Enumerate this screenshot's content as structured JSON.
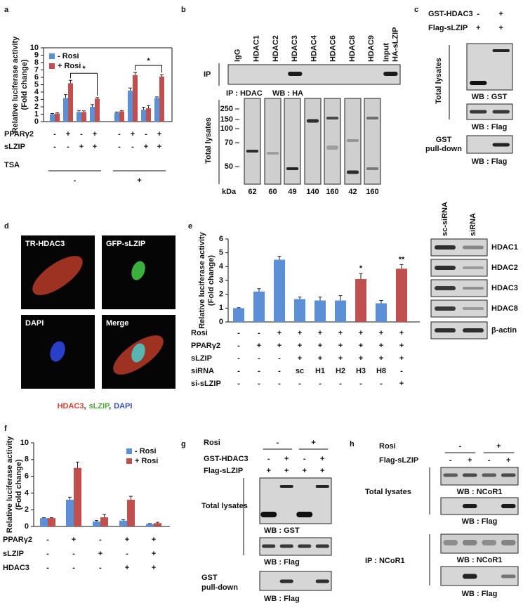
{
  "chart_data": [
    {
      "type": "bar",
      "y_label": [
        "Relative luciferase activity",
        "(Fold change)"
      ],
      "categories": [
        null,
        null,
        null,
        null,
        null,
        null,
        null,
        null
      ],
      "series": [
        {
          "name": "- Rosi",
          "color": "#5b8fd6",
          "values": [
            1.0,
            3.2,
            1.3,
            2.0,
            1.2,
            4.2,
            1.6,
            3.2
          ],
          "errors": [
            0.1,
            0.45,
            0.2,
            0.3,
            0.1,
            0.35,
            0.35,
            0.15
          ]
        },
        {
          "name": "+ Rosi",
          "color": "#c0504d",
          "values": [
            1.1,
            5.2,
            1.3,
            3.1,
            1.4,
            6.3,
            1.8,
            6.1
          ],
          "errors": [
            0.1,
            0.4,
            0.15,
            0.15,
            0.1,
            0.35,
            0.35,
            0.25
          ]
        }
      ],
      "ylim": [
        0,
        10
      ],
      "yticks": [
        0,
        1,
        2,
        3,
        4,
        5,
        6,
        7,
        8,
        9,
        10
      ],
      "legend": "upper left",
      "annotations": [
        "*",
        "*"
      ],
      "conditions": [
        {
          "label": "PPARγ2",
          "cells": [
            "-",
            "+",
            "-",
            "+",
            "-",
            "+",
            "-",
            "+"
          ]
        },
        {
          "label": "sLZIP",
          "cells": [
            "-",
            "-",
            "+",
            "+",
            "-",
            "-",
            "+",
            "+"
          ]
        },
        {
          "label": "TSA",
          "cells": [
            "-",
            "+"
          ]
        }
      ]
    },
    {
      "type": "bar",
      "y_label": [
        "Relative luciferase activity",
        "(Fold change)"
      ],
      "categories": [
        null,
        null,
        null,
        null,
        null,
        null,
        null,
        null,
        null
      ],
      "values": [
        1.0,
        2.2,
        4.5,
        1.65,
        1.55,
        1.55,
        3.1,
        1.35,
        3.85
      ],
      "errors": [
        0.03,
        0.2,
        0.25,
        0.15,
        0.25,
        0.35,
        0.4,
        0.2,
        0.3
      ],
      "colors": [
        "#5b8fd6",
        "#5b8fd6",
        "#5b8fd6",
        "#5b8fd6",
        "#5b8fd6",
        "#5b8fd6",
        "#c0504d",
        "#5b8fd6",
        "#c0504d"
      ],
      "bar_labels": [
        null,
        null,
        null,
        null,
        null,
        null,
        "*",
        null,
        "**"
      ],
      "ylim": [
        0,
        6
      ],
      "yticks": [
        0,
        1,
        2,
        3,
        4,
        5,
        6
      ],
      "conditions": [
        {
          "label": "Rosi",
          "cells": [
            "-",
            "-",
            "+",
            "+",
            "+",
            "+",
            "+",
            "+",
            "+"
          ]
        },
        {
          "label": "PPARγ2",
          "cells": [
            "-",
            "+",
            "+",
            "+",
            "+",
            "+",
            "+",
            "+",
            "+"
          ]
        },
        {
          "label": "sLZIP",
          "cells": [
            "-",
            "-",
            "-",
            "+",
            "+",
            "+",
            "+",
            "+",
            "+"
          ]
        },
        {
          "label": "siRNA",
          "cells": [
            "-",
            "-",
            "-",
            "sc",
            "H1",
            "H2",
            "H3",
            "H8",
            "-"
          ]
        },
        {
          "label": "si-sLZIP",
          "cells": [
            "-",
            "-",
            "-",
            "-",
            "-",
            "-",
            "-",
            "-",
            "+"
          ]
        }
      ]
    },
    {
      "type": "bar",
      "y_label": [
        "Relative luciferase activity",
        "(Fold change)"
      ],
      "categories": [
        null,
        null,
        null,
        null,
        null
      ],
      "series": [
        {
          "name": "- Rosi",
          "color": "#5b8fd6",
          "values": [
            1.0,
            3.2,
            0.6,
            0.7,
            0.3
          ],
          "errors": [
            0.05,
            0.3,
            0.1,
            0.1,
            0.05
          ]
        },
        {
          "name": "+ Rosi",
          "color": "#c0504d",
          "values": [
            1.0,
            7.0,
            1.1,
            3.2,
            0.4
          ],
          "errors": [
            0.05,
            0.7,
            0.35,
            0.4,
            0.1
          ]
        }
      ],
      "ylim": [
        0,
        10
      ],
      "yticks": [
        0,
        2,
        4,
        6,
        8,
        10
      ],
      "legend": "upper right",
      "conditions": [
        {
          "label": "PPARγ2",
          "cells": [
            "-",
            "+",
            "-",
            "+",
            "+"
          ]
        },
        {
          "label": "sLZIP",
          "cells": [
            "-",
            "-",
            "+",
            "-",
            "+"
          ]
        },
        {
          "label": "HDAC3",
          "cells": [
            "-",
            "-",
            "-",
            "+",
            "+"
          ]
        }
      ]
    }
  ],
  "panel_labels": [
    "a",
    "b",
    "c",
    "d",
    "e",
    "f",
    "g",
    "h"
  ],
  "blot_b": {
    "lanes": [
      "IgG",
      "HDAC1",
      "HDAC2",
      "HDAC3",
      "HDAC4",
      "HDAC6",
      "HDAC8",
      "HDAC9",
      "Input",
      "HA-sLZIP"
    ],
    "ip_label": "IP",
    "ip_caption": [
      "IP : HDAC",
      "WB : HA"
    ],
    "lysate_label": "Total lysates",
    "markers": [
      250,
      150,
      100,
      70,
      50
    ],
    "unit": "kDa",
    "sizes": [
      62,
      60,
      49,
      140,
      160,
      42,
      160
    ]
  },
  "blot_c": {
    "rows": [
      {
        "label": "GST-HDAC3",
        "cells": [
          "-",
          "+"
        ]
      },
      {
        "label": "Flag-sLZIP",
        "cells": [
          "+",
          "+"
        ]
      }
    ],
    "lysate_label": "Total lysates",
    "captions": [
      "WB : GST",
      "WB : Flag",
      "WB : Flag"
    ],
    "pulldown_label": [
      "GST",
      "pull-down"
    ]
  },
  "images_d": {
    "labels": [
      "TR-HDAC3",
      "GFP-sLZIP",
      "DAPI",
      "Merge"
    ],
    "caption": [
      "HDAC3",
      ",",
      "sLZIP",
      ",",
      "DAPI"
    ],
    "caption_colors": [
      "#d9432f",
      "#222222",
      "#4caa3a",
      "#222222",
      "#3050c0"
    ]
  },
  "blot_e": {
    "lanes": [
      "sc-siRNA",
      "siRNA"
    ],
    "rows": [
      "HDAC1",
      "HDAC2",
      "HDAC3",
      "HDAC8",
      "β-actin"
    ]
  },
  "blot_g": {
    "rows": [
      {
        "label": "Rosi",
        "cells": [
          "-",
          "+"
        ]
      },
      {
        "label": "GST-HDAC3",
        "cells": [
          "-",
          "+",
          "-",
          "+"
        ]
      },
      {
        "label": "Flag-sLZIP",
        "cells": [
          "+",
          "+",
          "+",
          "+"
        ]
      }
    ],
    "lysate_label": "Total lysates",
    "captions": [
      "WB : GST",
      "WB : Flag",
      "WB : Flag"
    ],
    "pulldown_label": [
      "GST",
      "pull-down"
    ]
  },
  "blot_h": {
    "rows": [
      {
        "label": "Rosi",
        "cells": [
          "-",
          "+"
        ]
      },
      {
        "label": "Flag-sLZIP",
        "cells": [
          "-",
          "+",
          "-",
          "+"
        ]
      }
    ],
    "lysate_label": "Total lysates",
    "ip_label": "IP : NCoR1",
    "captions": [
      "WB : NCoR1",
      "WB : Flag",
      "WB : NCoR1",
      "WB : Flag"
    ]
  }
}
